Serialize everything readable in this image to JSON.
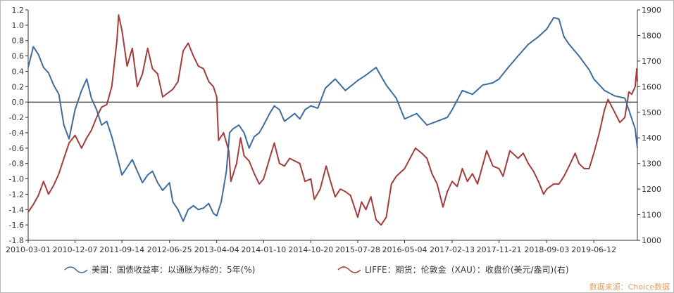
{
  "chart_data": {
    "type": "line",
    "dual_axis": true,
    "title": "",
    "x_tick_labels": [
      "2010-03-01",
      "2010-12-07",
      "2011-09-14",
      "2012-06-25",
      "2013-04-04",
      "2014-01-10",
      "2014-10-20",
      "2015-07-28",
      "2016-05-04",
      "2017-02-13",
      "2017-11-21",
      "2018-09-03",
      "2019-06-12"
    ],
    "x_range": [
      "2010-03-01",
      "2020-02-28"
    ],
    "y_left": {
      "min": -1.8,
      "max": 1.2,
      "step": 0.2,
      "tick_labels": [
        "1.2",
        "1.0",
        "0.8",
        "0.6",
        "0.4",
        "0.2",
        "0.0",
        "-0.2",
        "-0.4",
        "-0.6",
        "-0.8",
        "-1.0",
        "-1.2",
        "-1.4",
        "-1.6",
        "-1.8"
      ],
      "reference_line": 0.0
    },
    "y_right": {
      "min": 1000,
      "max": 1900,
      "step": 100,
      "tick_labels": [
        "1900",
        "1800",
        "1700",
        "1600",
        "1500",
        "1400",
        "1300",
        "1200",
        "1100",
        "1000"
      ]
    },
    "grid": false,
    "legend_position": "bottom",
    "series": [
      {
        "name": "美国：国债收益率：以通胀为标的：5年(%)",
        "axis": "left",
        "color": "#3d6ca3",
        "points": [
          [
            "2010-03-01",
            0.45
          ],
          [
            "2010-04-01",
            0.72
          ],
          [
            "2010-05-01",
            0.62
          ],
          [
            "2010-06-01",
            0.45
          ],
          [
            "2010-07-01",
            0.38
          ],
          [
            "2010-08-01",
            0.22
          ],
          [
            "2010-09-01",
            0.1
          ],
          [
            "2010-10-01",
            -0.3
          ],
          [
            "2010-11-01",
            -0.48
          ],
          [
            "2010-12-07",
            -0.1
          ],
          [
            "2011-01-15",
            0.15
          ],
          [
            "2011-02-15",
            0.3
          ],
          [
            "2011-03-15",
            0.05
          ],
          [
            "2011-04-15",
            -0.1
          ],
          [
            "2011-05-15",
            -0.3
          ],
          [
            "2011-06-15",
            -0.25
          ],
          [
            "2011-07-15",
            -0.45
          ],
          [
            "2011-08-15",
            -0.7
          ],
          [
            "2011-09-14",
            -0.95
          ],
          [
            "2011-10-15",
            -0.85
          ],
          [
            "2011-11-15",
            -0.75
          ],
          [
            "2011-12-15",
            -0.9
          ],
          [
            "2012-01-15",
            -1.05
          ],
          [
            "2012-02-15",
            -0.95
          ],
          [
            "2012-03-15",
            -0.9
          ],
          [
            "2012-04-15",
            -1.05
          ],
          [
            "2012-05-15",
            -1.15
          ],
          [
            "2012-06-25",
            -1.05
          ],
          [
            "2012-07-15",
            -1.3
          ],
          [
            "2012-08-15",
            -1.4
          ],
          [
            "2012-09-15",
            -1.55
          ],
          [
            "2012-10-15",
            -1.4
          ],
          [
            "2012-11-15",
            -1.35
          ],
          [
            "2012-12-15",
            -1.4
          ],
          [
            "2013-01-15",
            -1.38
          ],
          [
            "2013-02-15",
            -1.32
          ],
          [
            "2013-03-15",
            -1.45
          ],
          [
            "2013-04-04",
            -1.48
          ],
          [
            "2013-05-01",
            -1.3
          ],
          [
            "2013-06-01",
            -0.9
          ],
          [
            "2013-06-20",
            -0.4
          ],
          [
            "2013-07-10",
            -0.35
          ],
          [
            "2013-08-15",
            -0.3
          ],
          [
            "2013-09-15",
            -0.4
          ],
          [
            "2013-10-15",
            -0.6
          ],
          [
            "2013-11-15",
            -0.45
          ],
          [
            "2013-12-15",
            -0.4
          ],
          [
            "2014-01-10",
            -0.3
          ],
          [
            "2014-02-15",
            -0.15
          ],
          [
            "2014-03-15",
            -0.05
          ],
          [
            "2014-04-15",
            -0.1
          ],
          [
            "2014-05-15",
            -0.25
          ],
          [
            "2014-06-15",
            -0.2
          ],
          [
            "2014-07-15",
            -0.15
          ],
          [
            "2014-08-15",
            -0.22
          ],
          [
            "2014-09-15",
            -0.1
          ],
          [
            "2014-10-20",
            -0.05
          ],
          [
            "2014-12-01",
            -0.08
          ],
          [
            "2015-01-15",
            0.18
          ],
          [
            "2015-03-15",
            0.3
          ],
          [
            "2015-05-15",
            0.15
          ],
          [
            "2015-07-28",
            0.28
          ],
          [
            "2015-09-15",
            0.35
          ],
          [
            "2015-11-15",
            0.45
          ],
          [
            "2016-01-15",
            0.22
          ],
          [
            "2016-03-15",
            0.05
          ],
          [
            "2016-05-04",
            -0.22
          ],
          [
            "2016-07-15",
            -0.15
          ],
          [
            "2016-09-15",
            -0.3
          ],
          [
            "2016-11-15",
            -0.25
          ],
          [
            "2017-01-15",
            -0.2
          ],
          [
            "2017-02-13",
            -0.1
          ],
          [
            "2017-04-15",
            0.15
          ],
          [
            "2017-06-15",
            0.1
          ],
          [
            "2017-08-15",
            0.22
          ],
          [
            "2017-10-15",
            0.25
          ],
          [
            "2017-11-21",
            0.3
          ],
          [
            "2018-01-15",
            0.45
          ],
          [
            "2018-03-15",
            0.6
          ],
          [
            "2018-05-15",
            0.75
          ],
          [
            "2018-07-15",
            0.85
          ],
          [
            "2018-09-03",
            0.95
          ],
          [
            "2018-10-15",
            1.1
          ],
          [
            "2018-11-15",
            1.08
          ],
          [
            "2018-12-15",
            0.85
          ],
          [
            "2019-01-15",
            0.75
          ],
          [
            "2019-03-15",
            0.6
          ],
          [
            "2019-05-15",
            0.42
          ],
          [
            "2019-06-12",
            0.3
          ],
          [
            "2019-08-15",
            0.15
          ],
          [
            "2019-10-15",
            0.08
          ],
          [
            "2019-12-15",
            0.05
          ],
          [
            "2020-01-15",
            -0.15
          ],
          [
            "2020-02-15",
            -0.35
          ],
          [
            "2020-02-28",
            -0.6
          ]
        ]
      },
      {
        "name": "LIFFE：期货：伦敦金（XAU）：收盘价(美元/盎司)(右)",
        "axis": "right",
        "color": "#a63b3b",
        "points": [
          [
            "2010-03-01",
            1110
          ],
          [
            "2010-04-01",
            1140
          ],
          [
            "2010-05-01",
            1175
          ],
          [
            "2010-06-01",
            1230
          ],
          [
            "2010-07-01",
            1180
          ],
          [
            "2010-08-01",
            1215
          ],
          [
            "2010-09-01",
            1260
          ],
          [
            "2010-10-01",
            1320
          ],
          [
            "2010-11-01",
            1380
          ],
          [
            "2010-12-07",
            1410
          ],
          [
            "2011-01-15",
            1360
          ],
          [
            "2011-02-15",
            1400
          ],
          [
            "2011-03-15",
            1430
          ],
          [
            "2011-04-15",
            1480
          ],
          [
            "2011-05-15",
            1520
          ],
          [
            "2011-06-15",
            1530
          ],
          [
            "2011-07-15",
            1600
          ],
          [
            "2011-08-15",
            1780
          ],
          [
            "2011-08-25",
            1880
          ],
          [
            "2011-09-14",
            1820
          ],
          [
            "2011-10-15",
            1680
          ],
          [
            "2011-11-15",
            1750
          ],
          [
            "2011-12-15",
            1600
          ],
          [
            "2012-01-15",
            1650
          ],
          [
            "2012-02-15",
            1750
          ],
          [
            "2012-03-15",
            1670
          ],
          [
            "2012-04-15",
            1650
          ],
          [
            "2012-05-15",
            1560
          ],
          [
            "2012-06-25",
            1580
          ],
          [
            "2012-07-15",
            1590
          ],
          [
            "2012-08-15",
            1620
          ],
          [
            "2012-09-15",
            1740
          ],
          [
            "2012-10-15",
            1770
          ],
          [
            "2012-11-15",
            1720
          ],
          [
            "2012-12-15",
            1680
          ],
          [
            "2013-01-15",
            1670
          ],
          [
            "2013-02-15",
            1620
          ],
          [
            "2013-03-15",
            1600
          ],
          [
            "2013-04-04",
            1560
          ],
          [
            "2013-04-15",
            1390
          ],
          [
            "2013-05-15",
            1420
          ],
          [
            "2013-06-15",
            1350
          ],
          [
            "2013-06-28",
            1230
          ],
          [
            "2013-08-01",
            1300
          ],
          [
            "2013-08-25",
            1400
          ],
          [
            "2013-09-15",
            1330
          ],
          [
            "2013-10-15",
            1310
          ],
          [
            "2013-11-15",
            1260
          ],
          [
            "2013-12-15",
            1220
          ],
          [
            "2014-01-10",
            1240
          ],
          [
            "2014-02-15",
            1320
          ],
          [
            "2014-03-15",
            1380
          ],
          [
            "2014-04-15",
            1300
          ],
          [
            "2014-05-15",
            1290
          ],
          [
            "2014-06-15",
            1320
          ],
          [
            "2014-07-15",
            1310
          ],
          [
            "2014-08-15",
            1300
          ],
          [
            "2014-09-15",
            1230
          ],
          [
            "2014-10-20",
            1240
          ],
          [
            "2014-11-10",
            1160
          ],
          [
            "2014-12-15",
            1200
          ],
          [
            "2015-01-20",
            1290
          ],
          [
            "2015-02-15",
            1230
          ],
          [
            "2015-03-15",
            1170
          ],
          [
            "2015-04-15",
            1200
          ],
          [
            "2015-05-15",
            1190
          ],
          [
            "2015-06-15",
            1175
          ],
          [
            "2015-07-28",
            1090
          ],
          [
            "2015-08-20",
            1150
          ],
          [
            "2015-09-15",
            1120
          ],
          [
            "2015-10-15",
            1170
          ],
          [
            "2015-11-15",
            1080
          ],
          [
            "2015-12-15",
            1060
          ],
          [
            "2016-01-15",
            1090
          ],
          [
            "2016-02-15",
            1220
          ],
          [
            "2016-03-15",
            1250
          ],
          [
            "2016-05-04",
            1280
          ],
          [
            "2016-07-08",
            1360
          ],
          [
            "2016-08-15",
            1340
          ],
          [
            "2016-09-15",
            1320
          ],
          [
            "2016-10-15",
            1260
          ],
          [
            "2016-11-15",
            1220
          ],
          [
            "2016-12-20",
            1130
          ],
          [
            "2017-01-15",
            1190
          ],
          [
            "2017-02-13",
            1230
          ],
          [
            "2017-03-15",
            1210
          ],
          [
            "2017-04-15",
            1280
          ],
          [
            "2017-05-15",
            1230
          ],
          [
            "2017-06-15",
            1260
          ],
          [
            "2017-07-15",
            1220
          ],
          [
            "2017-09-08",
            1350
          ],
          [
            "2017-10-15",
            1290
          ],
          [
            "2017-11-21",
            1280
          ],
          [
            "2017-12-15",
            1250
          ],
          [
            "2018-01-25",
            1350
          ],
          [
            "2018-03-15",
            1320
          ],
          [
            "2018-04-15",
            1340
          ],
          [
            "2018-05-15",
            1300
          ],
          [
            "2018-06-15",
            1270
          ],
          [
            "2018-07-15",
            1230
          ],
          [
            "2018-08-15",
            1180
          ],
          [
            "2018-09-03",
            1200
          ],
          [
            "2018-10-15",
            1220
          ],
          [
            "2018-11-15",
            1220
          ],
          [
            "2018-12-15",
            1250
          ],
          [
            "2019-01-15",
            1290
          ],
          [
            "2019-02-20",
            1340
          ],
          [
            "2019-03-15",
            1300
          ],
          [
            "2019-04-15",
            1280
          ],
          [
            "2019-05-15",
            1280
          ],
          [
            "2019-06-12",
            1340
          ],
          [
            "2019-07-15",
            1420
          ],
          [
            "2019-08-15",
            1510
          ],
          [
            "2019-09-05",
            1550
          ],
          [
            "2019-10-15",
            1500
          ],
          [
            "2019-11-15",
            1460
          ],
          [
            "2019-12-15",
            1480
          ],
          [
            "2020-01-08",
            1580
          ],
          [
            "2020-01-25",
            1570
          ],
          [
            "2020-02-15",
            1600
          ],
          [
            "2020-02-24",
            1670
          ],
          [
            "2020-02-28",
            1620
          ]
        ]
      }
    ]
  },
  "source_label": "数据来源：Choice数据"
}
